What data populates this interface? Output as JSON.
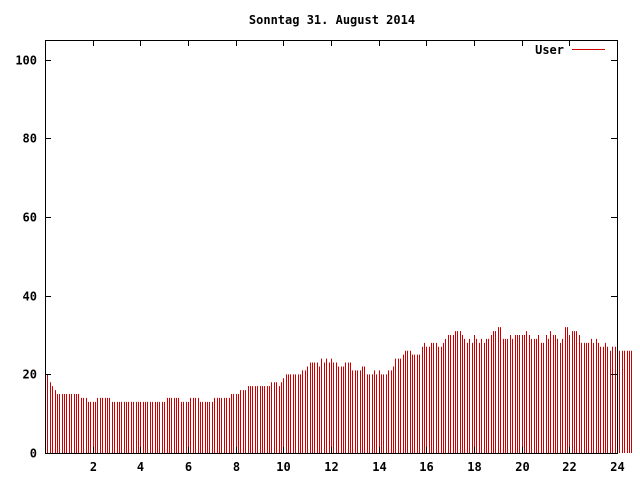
{
  "chart_data": {
    "type": "bar",
    "title": "Sonntag 31. August 2014",
    "xlabel": "",
    "ylabel": "",
    "xlim": [
      0,
      24
    ],
    "ylim": [
      0,
      105
    ],
    "x_ticks": [
      2,
      4,
      6,
      8,
      10,
      12,
      14,
      16,
      18,
      20,
      22,
      24
    ],
    "y_ticks": [
      0,
      20,
      40,
      60,
      80,
      100
    ],
    "grid": false,
    "legend": "top-right",
    "bar_color": "#cc0000",
    "series": [
      {
        "name": "User",
        "x_start": 0,
        "x_step": 0.1,
        "values": [
          20,
          20,
          18,
          17,
          16,
          15,
          15,
          15,
          15,
          15,
          15,
          15,
          15,
          15,
          15,
          14,
          14,
          14,
          13,
          13,
          13,
          13,
          14,
          14,
          14,
          14,
          14,
          14,
          13,
          13,
          13,
          13,
          13,
          13,
          13,
          13,
          13,
          13,
          13,
          13,
          13,
          13,
          13,
          13,
          13,
          13,
          13,
          13,
          13,
          13,
          13,
          14,
          14,
          14,
          14,
          14,
          14,
          13,
          13,
          13,
          13,
          14,
          14,
          14,
          14,
          13,
          13,
          13,
          13,
          13,
          13,
          14,
          14,
          14,
          14,
          14,
          14,
          14,
          15,
          15,
          15,
          15,
          16,
          16,
          16,
          17,
          17,
          17,
          17,
          17,
          17,
          17,
          17,
          17,
          17,
          18,
          18,
          18,
          17,
          18,
          19,
          20,
          20,
          20,
          20,
          20,
          20,
          20,
          21,
          21,
          22,
          23,
          23,
          23,
          23,
          22,
          24,
          23,
          24,
          23,
          24,
          23,
          23,
          22,
          22,
          22,
          23,
          23,
          23,
          21,
          21,
          21,
          21,
          22,
          22,
          20,
          20,
          20,
          21,
          20,
          21,
          20,
          20,
          20,
          21,
          21,
          22,
          24,
          24,
          24,
          25,
          26,
          26,
          26,
          25,
          25,
          25,
          25,
          27,
          28,
          27,
          27,
          28,
          28,
          28,
          27,
          27,
          28,
          29,
          30,
          30,
          30,
          31,
          31,
          31,
          30,
          29,
          28,
          29,
          28,
          30,
          29,
          28,
          29,
          28,
          29,
          29,
          30,
          31,
          31,
          32,
          32,
          29,
          29,
          29,
          30,
          29,
          30,
          30,
          30,
          30,
          30,
          31,
          30,
          29,
          29,
          29,
          30,
          28,
          28,
          30,
          29,
          31,
          30,
          30,
          29,
          28,
          29,
          32,
          32,
          30,
          31,
          31,
          31,
          30,
          28,
          28,
          28,
          28,
          29,
          28,
          29,
          28,
          27,
          27,
          28,
          27,
          26,
          27,
          27,
          26,
          26,
          26,
          26,
          26,
          26,
          26
        ]
      }
    ]
  }
}
